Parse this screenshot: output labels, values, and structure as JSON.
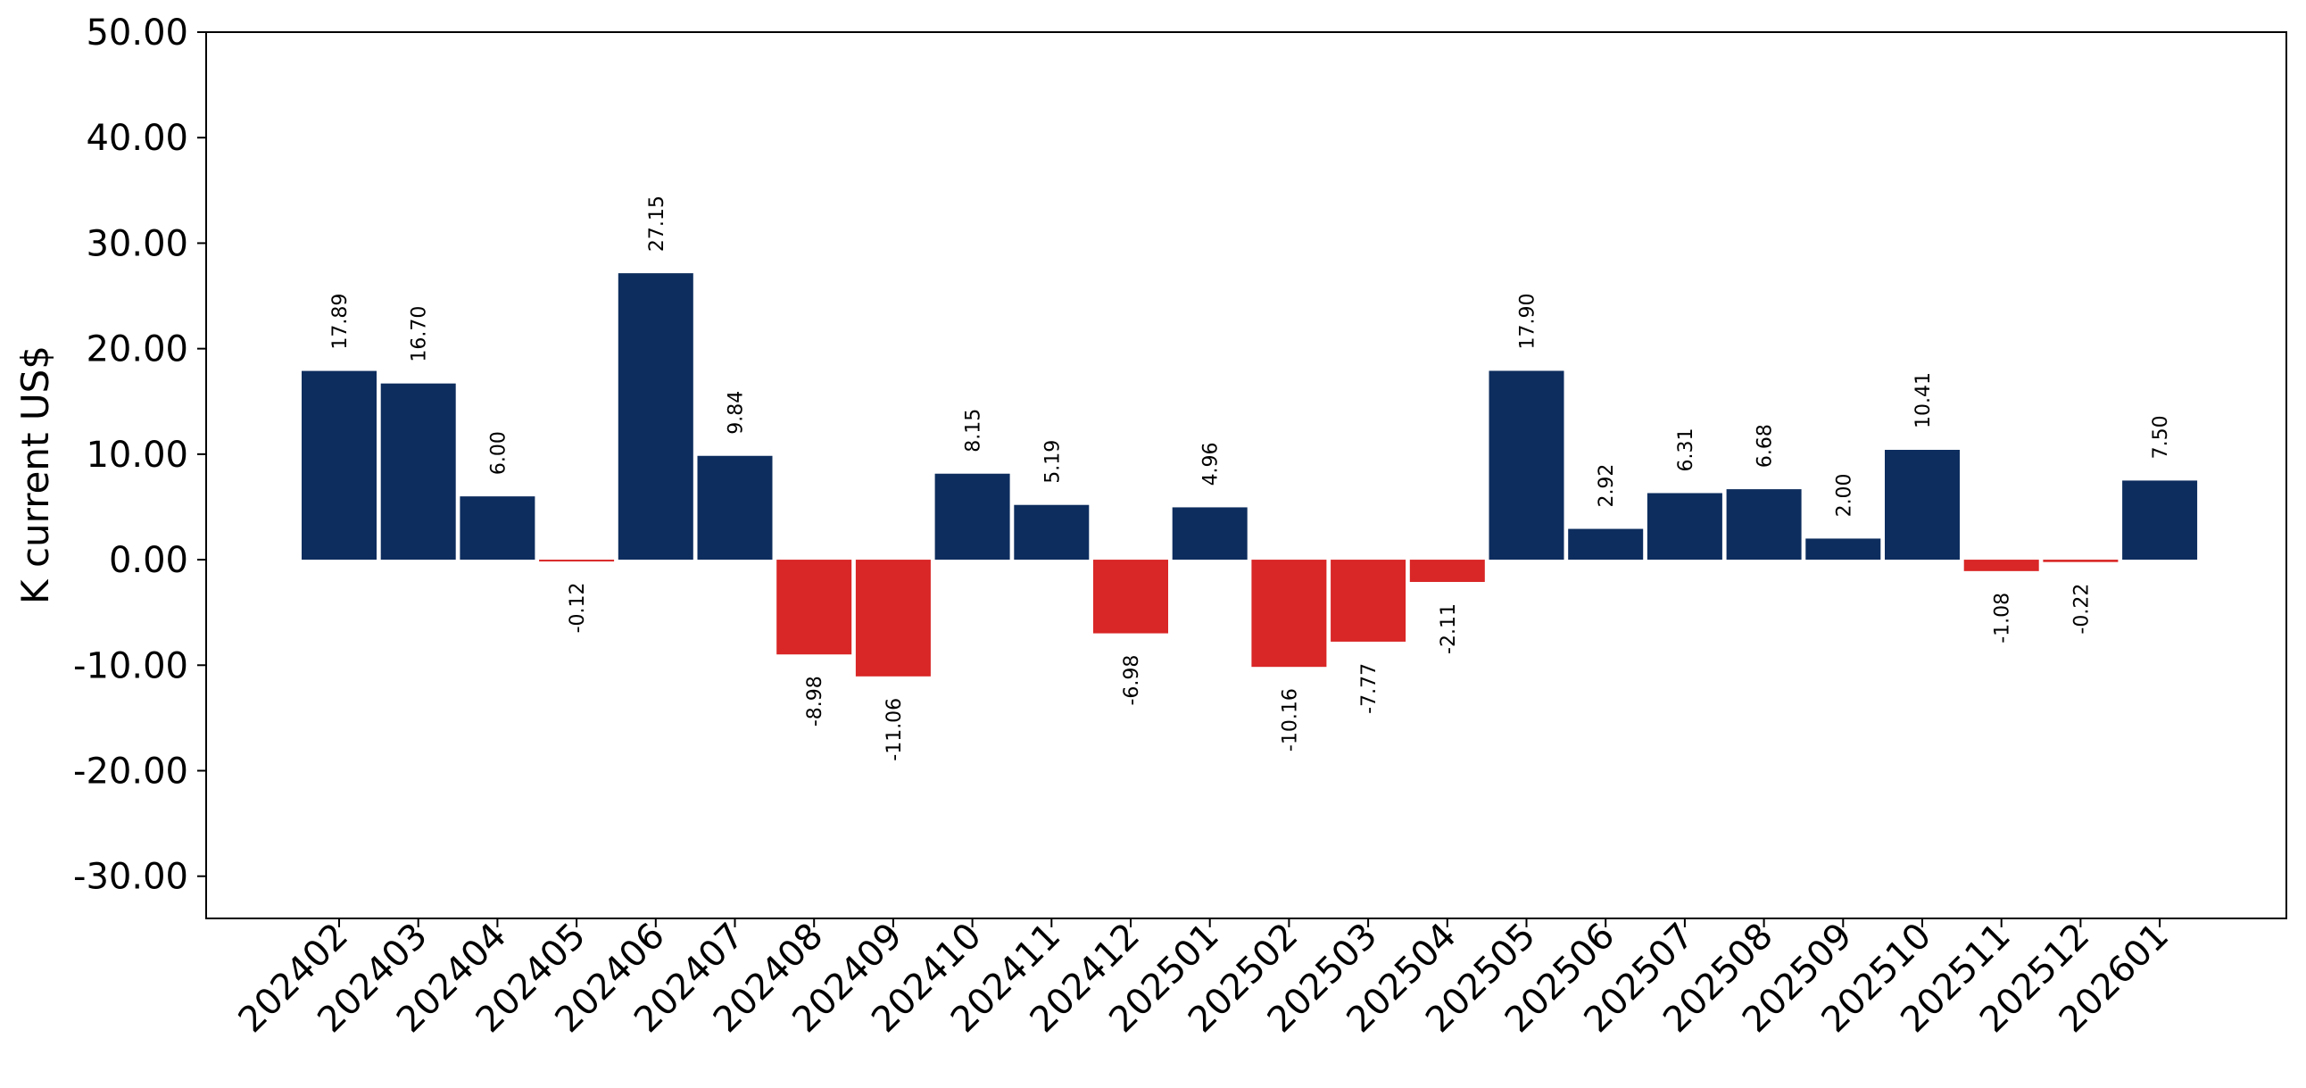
{
  "chart_data": {
    "type": "bar",
    "ylabel": "K current US$",
    "ylim": [
      -34,
      50
    ],
    "yticks": [
      -30,
      -20,
      -10,
      0,
      10,
      20,
      30,
      40,
      50
    ],
    "ytick_labels": [
      "-30.00",
      "-20.00",
      "-10.00",
      "0.00",
      "10.00",
      "20.00",
      "30.00",
      "40.00",
      "50.00"
    ],
    "categories": [
      "202402",
      "202403",
      "202404",
      "202405",
      "202406",
      "202407",
      "202408",
      "202409",
      "202410",
      "202411",
      "202412",
      "202501",
      "202502",
      "202503",
      "202504",
      "202505",
      "202506",
      "202507",
      "202508",
      "202509",
      "202510",
      "202511",
      "202512",
      "202601"
    ],
    "values": [
      17.89,
      16.7,
      6.0,
      -0.12,
      27.15,
      9.84,
      -8.98,
      -11.06,
      8.15,
      5.19,
      -6.98,
      4.96,
      -10.16,
      -7.77,
      -2.11,
      17.9,
      2.92,
      6.31,
      6.68,
      2.0,
      10.41,
      -1.08,
      -0.22,
      7.5
    ],
    "value_labels": [
      "17.89",
      "16.70",
      "6.00",
      "-0.12",
      "27.15",
      "9.84",
      "-8.98",
      "-11.06",
      "8.15",
      "5.19",
      "-6.98",
      "4.96",
      "-10.16",
      "-7.77",
      "-2.11",
      "17.90",
      "2.92",
      "6.31",
      "6.68",
      "2.00",
      "10.41",
      "-1.08",
      "-0.22",
      "7.50"
    ],
    "colors": {
      "positive": "#0d2d5e",
      "negative": "#d92626"
    },
    "grid": false,
    "legend": "none"
  }
}
